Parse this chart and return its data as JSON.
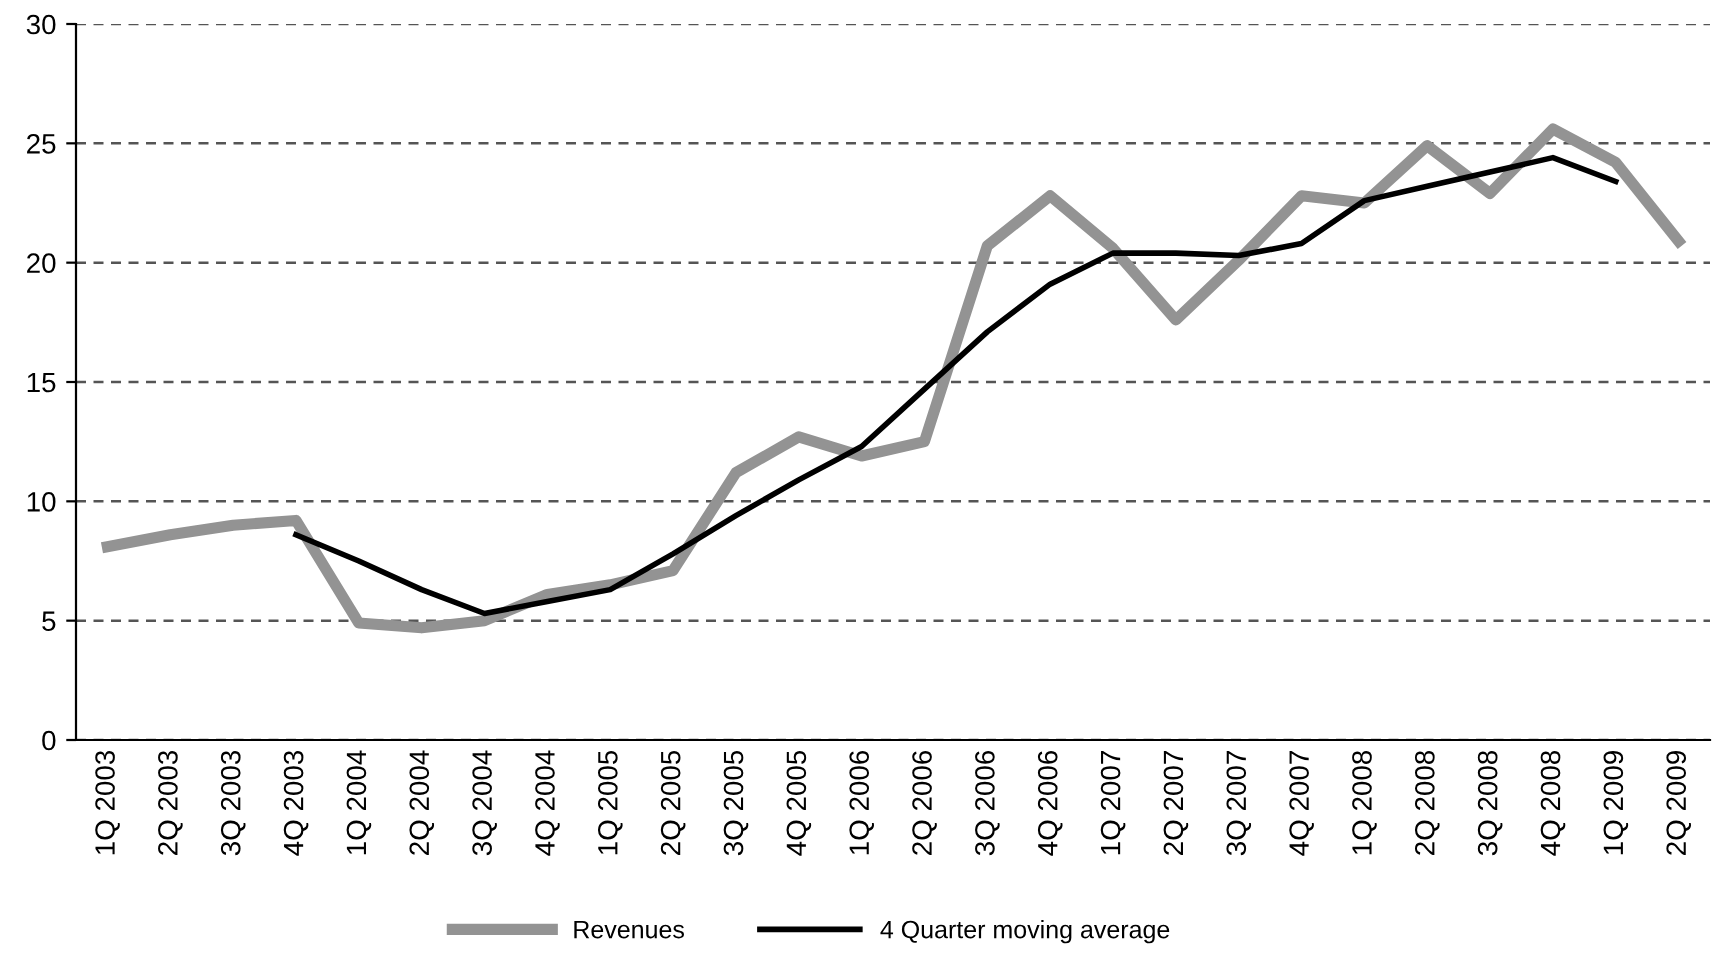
{
  "chart_data": {
    "type": "line",
    "categories": [
      "1Q 2003",
      "2Q 2003",
      "3Q 2003",
      "4Q 2003",
      "1Q 2004",
      "2Q 2004",
      "3Q 2004",
      "4Q 2004",
      "1Q 2005",
      "2Q 2005",
      "3Q 2005",
      "4Q 2005",
      "1Q 2006",
      "2Q 2006",
      "3Q 2006",
      "4Q 2006",
      "1Q 2007",
      "2Q 2007",
      "3Q 2007",
      "4Q 2007",
      "1Q 2008",
      "2Q 2008",
      "3Q 2008",
      "4Q 2008",
      "1Q 2009",
      "2Q 2009"
    ],
    "series": [
      {
        "name": "Revenues",
        "color": "#939393",
        "values": [
          8.1,
          8.6,
          9.0,
          9.2,
          4.9,
          4.7,
          5.0,
          6.1,
          6.5,
          7.1,
          11.2,
          12.7,
          11.9,
          12.5,
          20.7,
          22.8,
          20.6,
          17.6,
          20.1,
          22.8,
          22.5,
          24.9,
          22.9,
          25.6,
          24.2,
          20.9
        ]
      },
      {
        "name": "4 Quarter moving average",
        "color": "#000000",
        "values": [
          null,
          null,
          null,
          8.6,
          7.5,
          6.3,
          5.3,
          5.8,
          6.3,
          7.8,
          9.4,
          10.9,
          12.3,
          14.7,
          17.1,
          19.1,
          20.4,
          20.4,
          20.3,
          20.8,
          22.6,
          23.2,
          23.8,
          24.4,
          23.4,
          null
        ]
      }
    ],
    "ylim": [
      0,
      30
    ],
    "yticks": [
      0,
      5,
      10,
      15,
      20,
      25,
      30
    ],
    "grid": "y",
    "legend": "bottom",
    "marker": "none",
    "line_style": "solid"
  }
}
